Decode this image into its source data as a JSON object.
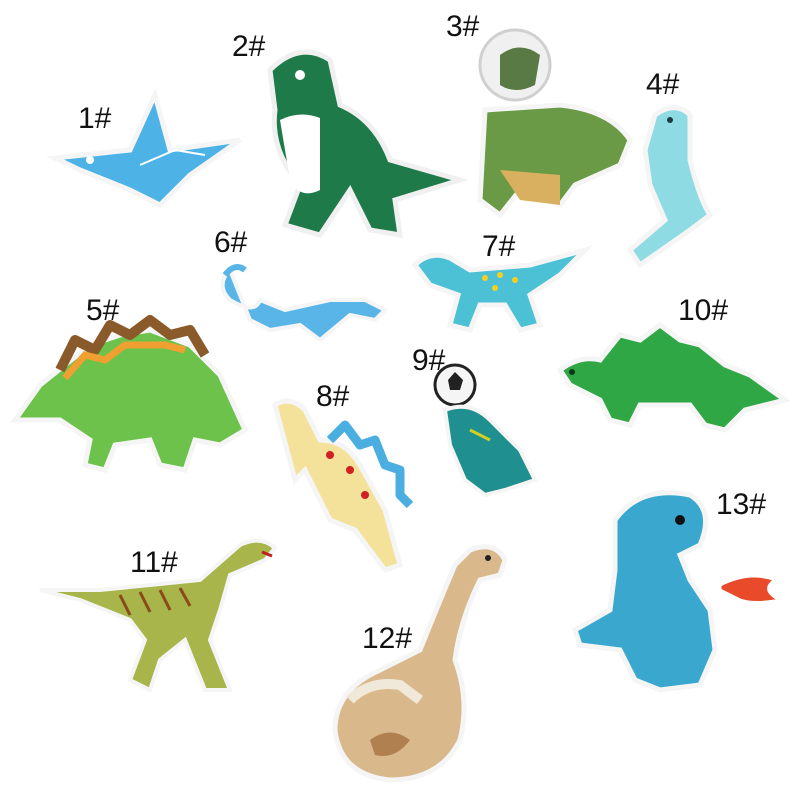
{
  "patches": [
    {
      "label": "1#",
      "subject": "pterodactyl",
      "color": "#4db3e6"
    },
    {
      "label": "2#",
      "subject": "t-rex cartoon",
      "color": "#1f7a4a"
    },
    {
      "label": "3#",
      "subject": "astronaut dinosaur",
      "color": "#6a9a45"
    },
    {
      "label": "4#",
      "subject": "standing dinosaur",
      "color": "#8fdbe3"
    },
    {
      "label": "5#",
      "subject": "stegosaurus",
      "color": "#6cc24a"
    },
    {
      "label": "6#",
      "subject": "plesiosaur",
      "color": "#59b5e8"
    },
    {
      "label": "7#",
      "subject": "spotted dinosaur",
      "color": "#4cc1d6"
    },
    {
      "label": "8#",
      "subject": "yellow stegosaurus",
      "color": "#f4e19a"
    },
    {
      "label": "9#",
      "subject": "dinosaur with soccer ball",
      "color": "#1f8f8f"
    },
    {
      "label": "10#",
      "subject": "green stegosaurus",
      "color": "#2fa745"
    },
    {
      "label": "11#",
      "subject": "striped raptor",
      "color": "#a7b54a"
    },
    {
      "label": "12#",
      "subject": "brachiosaurus",
      "color": "#d9b98c"
    },
    {
      "label": "13#",
      "subject": "fire-breathing dinosaur",
      "color": "#3aa7cf"
    }
  ]
}
